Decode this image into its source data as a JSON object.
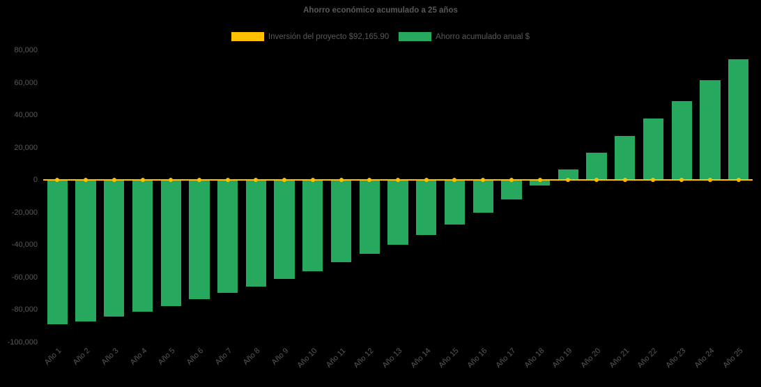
{
  "colors": {
    "background": "#000000",
    "text": "#595959",
    "bar_green": "#27A85F",
    "line_yellow": "#FFC000"
  },
  "legend": [
    {
      "label": "Inversión del proyecto $92,165.90",
      "color": "#FFC000"
    },
    {
      "label": "Ahorro acumulado anual $",
      "color": "#27A85F"
    }
  ],
  "chart_data": {
    "type": "bar",
    "title": "Ahorro económico acumulado a 25 años",
    "xlabel": "",
    "ylabel": "",
    "ylim": [
      -100000,
      80000
    ],
    "grid": false,
    "legend_position": "top",
    "categories": [
      "Año 1",
      "Año 2",
      "Año 3",
      "Año 4",
      "Año 5",
      "Año 6",
      "Año 7",
      "Año 8",
      "Año 9",
      "Año 10",
      "Año 11",
      "Año 12",
      "Año 13",
      "Año 14",
      "Año 15",
      "Año 16",
      "Año 17",
      "Año 18",
      "Año 19",
      "Año 20",
      "Año 21",
      "Año 22",
      "Año 23",
      "Año 24",
      "Año 25"
    ],
    "yticks": [
      {
        "label": "80,000",
        "value": 80000
      },
      {
        "label": "60,000",
        "value": 60000
      },
      {
        "label": "40,000",
        "value": 40000
      },
      {
        "label": "20,000",
        "value": 20000
      },
      {
        "label": "0",
        "value": 0
      },
      {
        "label": "-20,000",
        "value": -20000
      },
      {
        "label": "-40,000",
        "value": -40000
      },
      {
        "label": "-60,000",
        "value": -60000
      },
      {
        "label": "-80,000",
        "value": -80000
      },
      {
        "label": "-100,000",
        "value": -100000
      }
    ],
    "series": [
      {
        "name": "Inversión del proyecto $92,165.90",
        "type": "line",
        "color": "#FFC000",
        "values": [
          0,
          0,
          0,
          0,
          0,
          0,
          0,
          0,
          0,
          0,
          0,
          0,
          0,
          0,
          0,
          0,
          0,
          0,
          0,
          0,
          0,
          0,
          0,
          0,
          0
        ]
      },
      {
        "name": "Ahorro acumulado anual $",
        "type": "bar",
        "color": "#27A85F",
        "values": [
          -89000,
          -87000,
          -84000,
          -81000,
          -77500,
          -73500,
          -69500,
          -65500,
          -61000,
          -56000,
          -50500,
          -45500,
          -40000,
          -34000,
          -27500,
          -20000,
          -12000,
          -3500,
          6500,
          17000,
          27000,
          38000,
          48500,
          61500,
          74500
        ]
      }
    ]
  }
}
